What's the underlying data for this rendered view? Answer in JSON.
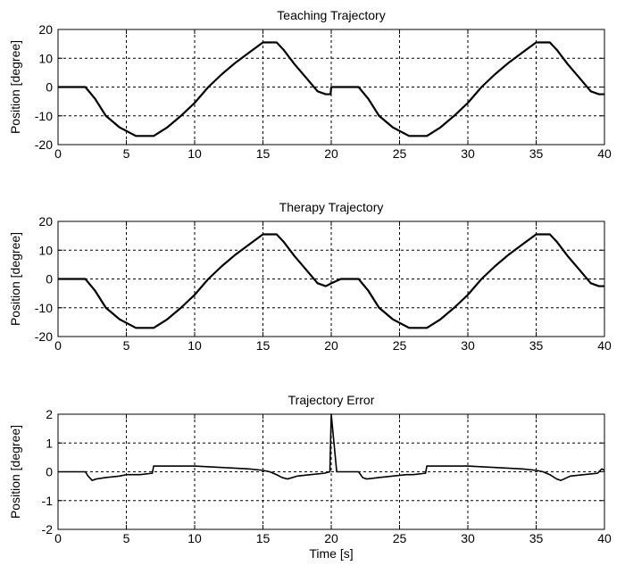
{
  "chart_data": [
    {
      "type": "line",
      "title": "Teaching Trajectory",
      "xlabel": "",
      "ylabel": "Position [degree]",
      "xlim": [
        0,
        40
      ],
      "ylim": [
        -20,
        20
      ],
      "xticks": [
        0,
        5,
        10,
        15,
        20,
        25,
        30,
        35,
        40
      ],
      "yticks": [
        -20,
        -10,
        0,
        10,
        20
      ],
      "grid": true,
      "series": [
        {
          "x": [
            0,
            2,
            2.7,
            3.5,
            4.5,
            5.7,
            7,
            8,
            9,
            10,
            11,
            12,
            13,
            14,
            15,
            16,
            16.5,
            17.3,
            18.2,
            19.0,
            19.6,
            19.95,
            20.0,
            22.0,
            22.7,
            23.5,
            24.5,
            25.7,
            27,
            28,
            29,
            30,
            31,
            32,
            33,
            34,
            35,
            36,
            36.5,
            37.3,
            38.2,
            39.0,
            39.6,
            40
          ],
          "y": [
            0,
            0,
            -4,
            -10,
            -14,
            -17,
            -17,
            -14,
            -10,
            -5.5,
            0,
            4.5,
            8.5,
            12,
            15.5,
            15.5,
            13,
            8,
            3,
            -1.5,
            -2.5,
            -2.5,
            0,
            0,
            -4,
            -10,
            -14,
            -17,
            -17,
            -14,
            -10,
            -5.5,
            0,
            4.5,
            8.5,
            12,
            15.5,
            15.5,
            13,
            8,
            3,
            -1.5,
            -2.5,
            -2.5
          ]
        }
      ]
    },
    {
      "type": "line",
      "title": "Therapy Trajectory",
      "xlabel": "",
      "ylabel": "Position [degree]",
      "xlim": [
        0,
        40
      ],
      "ylim": [
        -20,
        20
      ],
      "xticks": [
        0,
        5,
        10,
        15,
        20,
        25,
        30,
        35,
        40
      ],
      "yticks": [
        -20,
        -10,
        0,
        10,
        20
      ],
      "grid": true,
      "series": [
        {
          "x": [
            0,
            2,
            2.7,
            3.5,
            4.5,
            5.7,
            7,
            8,
            9,
            10,
            11,
            12,
            13,
            14,
            15,
            16,
            16.5,
            17.3,
            18.2,
            19.0,
            19.6,
            20.0,
            20.7,
            22.0,
            22.7,
            23.5,
            24.5,
            25.7,
            27,
            28,
            29,
            30,
            31,
            32,
            33,
            34,
            35,
            36,
            36.5,
            37.3,
            38.2,
            39.0,
            39.6,
            40
          ],
          "y": [
            0,
            0,
            -4,
            -10,
            -14,
            -17,
            -17,
            -14,
            -10,
            -5.5,
            0,
            4.5,
            8.5,
            12,
            15.5,
            15.5,
            13,
            8,
            3,
            -1.5,
            -2.5,
            -1.5,
            0,
            0,
            -4,
            -10,
            -14,
            -17,
            -17,
            -14,
            -10,
            -5.5,
            0,
            4.5,
            8.5,
            12,
            15.5,
            15.5,
            13,
            8,
            3,
            -1.5,
            -2.5,
            -2.5
          ]
        }
      ]
    },
    {
      "type": "line",
      "title": "Trajectory Error",
      "xlabel": "Time [s]",
      "ylabel": "Position [degree]",
      "xlim": [
        0,
        40
      ],
      "ylim": [
        -2,
        2
      ],
      "xticks": [
        0,
        5,
        10,
        15,
        20,
        25,
        30,
        35,
        40
      ],
      "yticks": [
        -2,
        -1,
        0,
        1,
        2
      ],
      "grid": true,
      "series": [
        {
          "x": [
            0,
            2.0,
            2.2,
            2.5,
            2.8,
            3.5,
            4.5,
            5.0,
            6.0,
            6.9,
            7.0,
            8.0,
            10.0,
            12.0,
            14.0,
            15.0,
            15.5,
            16.0,
            16.4,
            16.8,
            17.5,
            18.5,
            19.5,
            19.9,
            20.0,
            20.4,
            20.6,
            22.0,
            22.3,
            22.6,
            23.5,
            24.5,
            25.5,
            26.0,
            26.9,
            27.0,
            28.0,
            30.0,
            32.0,
            34.0,
            35.0,
            35.5,
            36.0,
            36.5,
            36.8,
            37.5,
            38.5,
            39.5,
            39.8,
            40.0
          ],
          "y": [
            0,
            0,
            -0.15,
            -0.3,
            -0.25,
            -0.2,
            -0.15,
            -0.1,
            -0.1,
            -0.05,
            0.2,
            0.2,
            0.2,
            0.15,
            0.1,
            0.05,
            0.0,
            -0.1,
            -0.2,
            -0.25,
            -0.15,
            -0.1,
            -0.05,
            0.0,
            2.0,
            0.0,
            0.0,
            0.0,
            -0.2,
            -0.25,
            -0.2,
            -0.15,
            -0.1,
            -0.1,
            -0.05,
            0.2,
            0.2,
            0.2,
            0.15,
            0.1,
            0.05,
            0.0,
            -0.1,
            -0.25,
            -0.3,
            -0.15,
            -0.1,
            -0.05,
            0.1,
            0.05
          ]
        }
      ]
    }
  ]
}
